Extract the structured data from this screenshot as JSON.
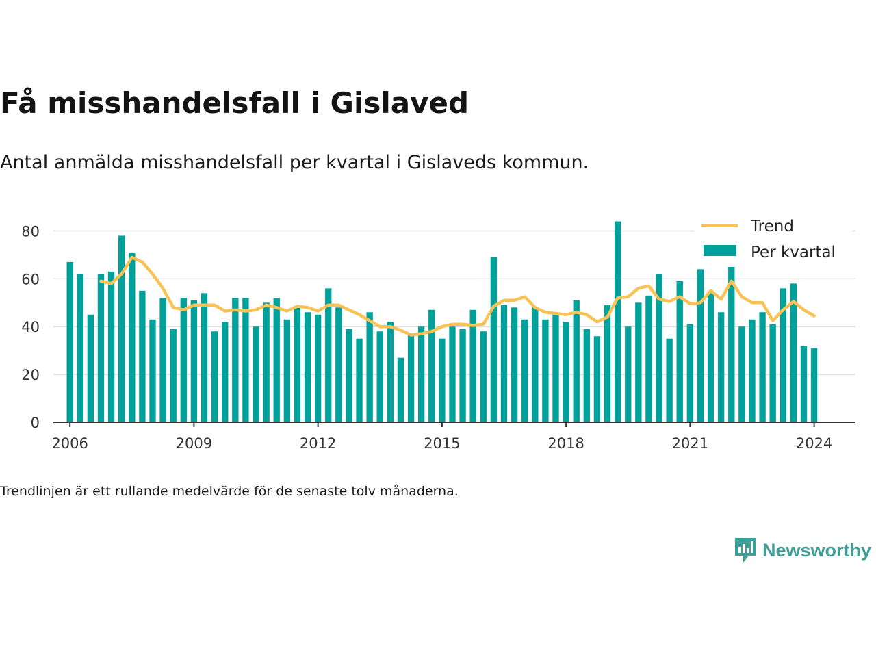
{
  "title": "Få misshandelsfall i Gislaved",
  "subtitle": "Antal anmälda misshandelsfall per kvartal i Gislaveds kommun.",
  "note": "Trendlinjen är ett rullande medelvärde för de senaste tolv månaderna.",
  "brand": {
    "name": "Newsworthy",
    "icon": "newsworthy-logo-icon"
  },
  "colors": {
    "bars": "#00a19a",
    "trend": "#f9c256",
    "grid": "#dddddd",
    "axis": "#333333"
  },
  "chart_data": {
    "type": "bar",
    "xlim": [
      2005.6,
      2025.0
    ],
    "ylim": [
      0,
      85
    ],
    "y_ticks": [
      0,
      20,
      40,
      60,
      80
    ],
    "x_ticks": [
      2006,
      2009,
      2012,
      2015,
      2018,
      2021,
      2024
    ],
    "x_tick_labels": [
      "2006",
      "2009",
      "2012",
      "2015",
      "2018",
      "2021",
      "2024"
    ],
    "y_tick_labels": [
      "0",
      "20",
      "40",
      "60",
      "80"
    ],
    "grid": true,
    "legend": {
      "position": "top-right",
      "entries": [
        {
          "label": "Trend",
          "type": "line"
        },
        {
          "label": "Per kvartal",
          "type": "bar"
        }
      ]
    },
    "series": [
      {
        "name": "Per kvartal",
        "type": "bar",
        "start_quarter": "2006 Q1",
        "values": [
          67,
          62,
          45,
          62,
          63,
          78,
          71,
          55,
          43,
          52,
          39,
          52,
          51,
          54,
          38,
          42,
          52,
          52,
          40,
          50,
          52,
          43,
          48,
          46,
          45,
          56,
          48,
          39,
          35,
          46,
          38,
          42,
          27,
          37,
          40,
          47,
          35,
          40,
          39,
          47,
          38,
          69,
          49,
          48,
          43,
          48,
          43,
          45,
          42,
          51,
          39,
          36,
          49,
          84,
          40,
          50,
          53,
          62,
          35,
          59,
          41,
          64,
          54,
          46,
          67,
          40,
          43,
          46,
          41,
          56,
          58,
          32,
          31
        ]
      },
      {
        "name": "Trend",
        "type": "line",
        "start_quarter": "2006 Q4",
        "values": [
          59,
          58,
          62,
          69,
          67,
          62,
          56,
          48,
          47,
          49,
          49,
          49,
          46.5,
          47,
          46.5,
          47,
          49,
          48,
          46.5,
          48.5,
          48,
          46.5,
          49,
          49,
          47,
          45,
          42.5,
          40,
          40,
          38.5,
          36.5,
          37,
          38,
          40,
          41,
          41,
          40.5,
          41,
          48.5,
          51,
          51,
          52.5,
          48,
          46,
          45.5,
          45,
          46,
          45,
          42,
          44,
          52,
          52.5,
          56,
          57,
          51.5,
          50.5,
          52.5,
          49.5,
          50,
          55,
          51.5,
          59,
          52.5,
          50,
          50,
          42.5,
          47,
          50.5,
          47,
          44.5
        ]
      }
    ]
  }
}
